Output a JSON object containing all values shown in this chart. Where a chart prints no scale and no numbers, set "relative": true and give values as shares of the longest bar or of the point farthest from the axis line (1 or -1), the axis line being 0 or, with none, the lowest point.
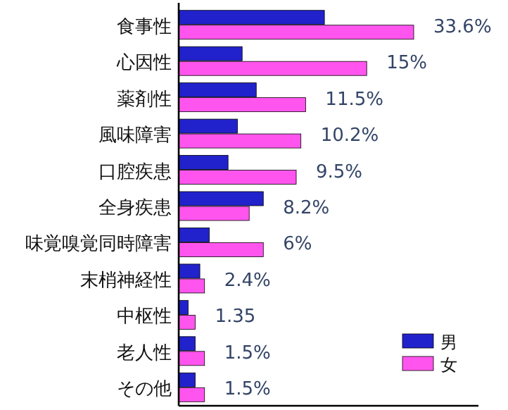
{
  "chart_data": {
    "type": "bar",
    "orientation": "horizontal",
    "relative": true,
    "legend": "bottom right",
    "categories": [
      "食事性",
      "心因性",
      "薬剤性",
      "風味障害",
      "口腔疾患",
      "全身疾患",
      "味覚嗅覚同時障害",
      "末梢神経性",
      "中枢性",
      "老人性",
      "その他"
    ],
    "series": [
      {
        "name": "男",
        "color": "#2222cc",
        "values": [
          0.62,
          0.27,
          0.33,
          0.25,
          0.21,
          0.36,
          0.13,
          0.09,
          0.04,
          0.07,
          0.07
        ]
      },
      {
        "name": "女",
        "color": "#ff55ee",
        "values": [
          1,
          0.8,
          0.54,
          0.52,
          0.5,
          0.3,
          0.36,
          0.11,
          0.07,
          0.11,
          0.11
        ]
      }
    ],
    "annotations": [
      "33.6%",
      "15%",
      "11.5%",
      "10.2%",
      "9.5%",
      "8.2%",
      "6%",
      "2.4%",
      "1.35",
      "1.5%",
      "1.5%"
    ]
  }
}
